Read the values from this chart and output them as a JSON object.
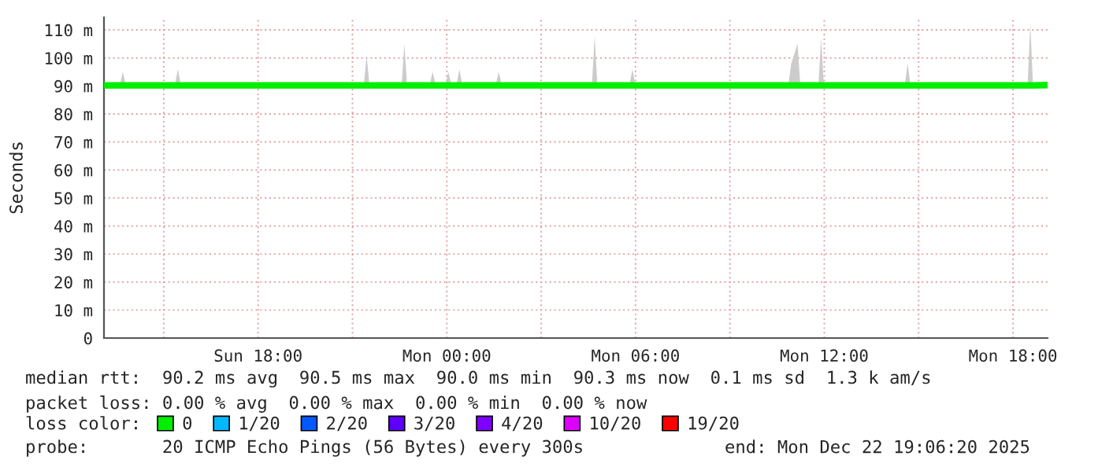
{
  "chart_data": {
    "type": "line",
    "ylabel": "Seconds",
    "legend_title": "loss color:",
    "legend": "bottom",
    "grid": true,
    "marker": "none",
    "line_style": "solid",
    "xlim": [
      "2025-12-21T13:06",
      "2025-12-22T19:06"
    ],
    "xticks": [
      {
        "value": "2025-12-21T15:00",
        "label": null
      },
      {
        "value": "2025-12-21T18:00",
        "label": "Sun 18:00"
      },
      {
        "value": "2025-12-21T21:00",
        "label": null
      },
      {
        "value": "2025-12-22T00:00",
        "label": "Mon 00:00"
      },
      {
        "value": "2025-12-22T03:00",
        "label": null
      },
      {
        "value": "2025-12-22T06:00",
        "label": "Mon 06:00"
      },
      {
        "value": "2025-12-22T09:00",
        "label": null
      },
      {
        "value": "2025-12-22T12:00",
        "label": "Mon 12:00"
      },
      {
        "value": "2025-12-22T15:00",
        "label": null
      },
      {
        "value": "2025-12-22T18:00",
        "label": "Mon 18:00"
      }
    ],
    "ylim": [
      0,
      114.5
    ],
    "yticks": [
      0,
      {
        "value": 10,
        "label": "10 m"
      },
      {
        "value": 20,
        "label": "20 m"
      },
      {
        "value": 30,
        "label": "30 m"
      },
      {
        "value": 40,
        "label": "40 m"
      },
      {
        "value": 50,
        "label": "50 m"
      },
      {
        "value": 60,
        "label": "60 m"
      },
      {
        "value": 70,
        "label": "70 m"
      },
      {
        "value": 80,
        "label": "80 m"
      },
      {
        "value": 90,
        "label": "90 m"
      },
      {
        "value": 100,
        "label": "100 m"
      },
      {
        "value": 110,
        "label": "110 m"
      }
    ],
    "series": [
      {
        "name": "0",
        "color": "#00ee00",
        "x": [
          "2025-12-21T13:06",
          "2025-12-21T13:37",
          "2025-12-21T13:42",
          "2025-12-21T13:47",
          "2025-12-21T15:22",
          "2025-12-21T15:27",
          "2025-12-21T15:32",
          "2025-12-21T21:22",
          "2025-12-21T21:27",
          "2025-12-21T21:32",
          "2025-12-21T22:34",
          "2025-12-21T22:39",
          "2025-12-21T22:44",
          "2025-12-21T23:28",
          "2025-12-21T23:33",
          "2025-12-21T23:38",
          "2025-12-21T23:58",
          "2025-12-22T00:03",
          "2025-12-22T00:08",
          "2025-12-22T00:19",
          "2025-12-22T00:24",
          "2025-12-22T00:29",
          "2025-12-22T01:34",
          "2025-12-22T01:39",
          "2025-12-22T01:44",
          "2025-12-22T04:37",
          "2025-12-22T04:42",
          "2025-12-22T04:47",
          "2025-12-22T05:49",
          "2025-12-22T05:54",
          "2025-12-22T05:59",
          "2025-12-22T10:52",
          "2025-12-22T10:57",
          "2025-12-22T11:09",
          "2025-12-22T11:14",
          "2025-12-22T11:49",
          "2025-12-22T11:54",
          "2025-12-22T11:59",
          "2025-12-22T14:34",
          "2025-12-22T14:39",
          "2025-12-22T14:44",
          "2025-12-22T18:28",
          "2025-12-22T18:33",
          "2025-12-22T18:38",
          "2025-12-22T19:06"
        ],
        "values": [
          90.2,
          90.2,
          90.2,
          90.2,
          90.2,
          90.2,
          90.2,
          90.2,
          90.2,
          90.2,
          90.2,
          90.2,
          90.2,
          90.2,
          90.2,
          90.2,
          90.2,
          90.2,
          90.2,
          90.2,
          90.2,
          90.2,
          90.2,
          90.2,
          90.2,
          90.2,
          90.2,
          90.2,
          90.2,
          90.2,
          90.2,
          90.2,
          90.2,
          90.2,
          90.2,
          90.2,
          90.2,
          90.2,
          90.2,
          90.2,
          90.2,
          90.2,
          90.2,
          90.2,
          90.3
        ],
        "lower": [
          90,
          90,
          90,
          90,
          90,
          90,
          90,
          90,
          90,
          90,
          90,
          90,
          90,
          90,
          90,
          90,
          90,
          90,
          90,
          90,
          90,
          90,
          90,
          90,
          90,
          90,
          90,
          90,
          90,
          90,
          90,
          90,
          90,
          90,
          90,
          90,
          90,
          90,
          90,
          90,
          90,
          90,
          90,
          90,
          90
        ],
        "upper": [
          91,
          91,
          95,
          91,
          91,
          96,
          91,
          91,
          101,
          91,
          91,
          105,
          91,
          91,
          95,
          91,
          91,
          95,
          91,
          91,
          96,
          91,
          91,
          95,
          91,
          91,
          108,
          91,
          91,
          96,
          91,
          91,
          98,
          105,
          91,
          91,
          107,
          91,
          91,
          98,
          91,
          91,
          112,
          91,
          91
        ]
      },
      {
        "name": "1/20",
        "color": "#00b8ff"
      },
      {
        "name": "2/20",
        "color": "#0059ff"
      },
      {
        "name": "3/20",
        "color": "#5e00ff"
      },
      {
        "name": "4/20",
        "color": "#7e00ff"
      },
      {
        "name": "10/20",
        "color": "#dd00ff"
      },
      {
        "name": "19/20",
        "color": "#ff0000"
      }
    ],
    "annotations": [
      "median rtt:  90.2 ms avg  90.5 ms max  90.0 ms min  90.3 ms now  0.1 ms sd  1.3 k am/s",
      "packet loss: 0.00 % avg  0.00 % max  0.00 % min  0.00 % now",
      "probe:       20 ICMP Echo Pings (56 Bytes) every 300s",
      "end: Mon Dec 22 19:06:20 2025"
    ]
  }
}
